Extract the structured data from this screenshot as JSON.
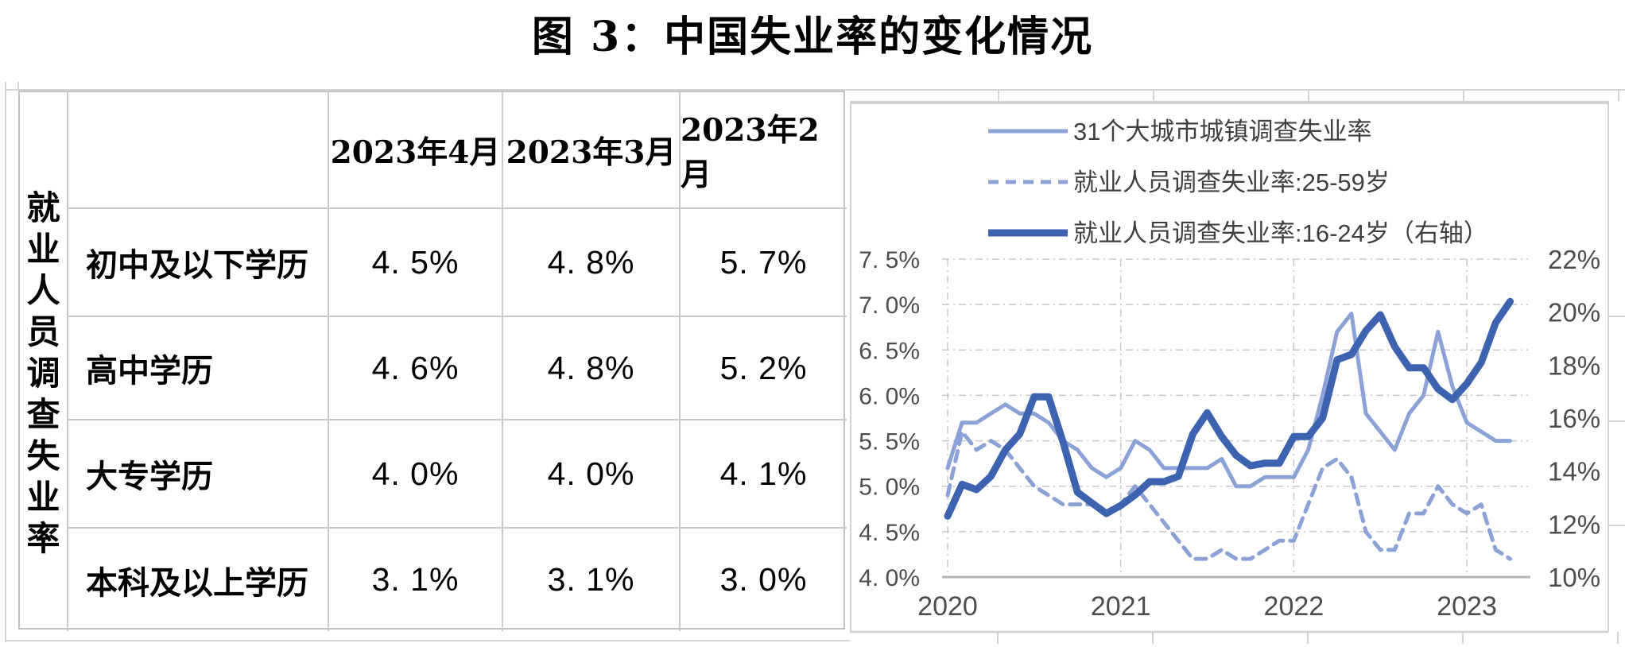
{
  "title": "图 3：中国失业率的变化情况",
  "table": {
    "row_group_label": "就业人员调查失业率",
    "columns": [
      "2023年4月",
      "2023年3月",
      "2023年2月"
    ],
    "rows": [
      {
        "label": "初中及以下学历",
        "values": [
          "4. 5%",
          "4. 8%",
          "5. 7%"
        ]
      },
      {
        "label": "高中学历",
        "values": [
          "4. 6%",
          "4. 8%",
          "5. 2%"
        ]
      },
      {
        "label": "大专学历",
        "values": [
          "4. 0%",
          "4. 0%",
          "4. 1%"
        ]
      },
      {
        "label": "本科及以上学历",
        "values": [
          "3. 1%",
          "3. 1%",
          "3. 0%"
        ]
      }
    ]
  },
  "chart_data": {
    "type": "line",
    "x_unit": "month",
    "x_start": "2020-01",
    "x_end": "2023-04",
    "x_year_labels": [
      "2020",
      "2021",
      "2022",
      "2023"
    ],
    "left_axis": {
      "min": 4.0,
      "max": 7.5,
      "ticks": [
        "7. 5%",
        "7. 0%",
        "6. 5%",
        "6. 0%",
        "5. 5%",
        "5. 0%",
        "4. 5%",
        "4. 0%"
      ]
    },
    "right_axis": {
      "min": 10,
      "max": 22,
      "ticks": [
        "22%",
        "20%",
        "18%",
        "16%",
        "14%",
        "12%",
        "10%"
      ]
    },
    "grid": "dash-dot",
    "legend_position": "top-left-stacked",
    "series": [
      {
        "name": "31个大城市城镇调查失业率",
        "axis": "left",
        "line": "solid",
        "color": "#8CA2D6",
        "width": 5,
        "values": [
          5.2,
          5.7,
          5.7,
          5.8,
          5.9,
          5.8,
          5.8,
          5.7,
          5.5,
          5.4,
          5.2,
          5.1,
          5.2,
          5.5,
          5.4,
          5.2,
          5.2,
          5.2,
          5.2,
          5.3,
          5.0,
          5.0,
          5.1,
          5.1,
          5.1,
          5.4,
          6.0,
          6.7,
          6.9,
          5.8,
          5.6,
          5.4,
          5.8,
          6.0,
          6.7,
          6.1,
          5.7,
          5.6,
          5.5,
          5.5
        ]
      },
      {
        "name": "就业人员调查失业率:25-59岁",
        "axis": "left",
        "line": "dashed",
        "color": "#8CA2D6",
        "width": 5,
        "values": [
          4.9,
          5.6,
          5.4,
          5.5,
          5.4,
          5.2,
          5.0,
          4.9,
          4.8,
          4.8,
          4.8,
          4.7,
          4.8,
          5.0,
          4.8,
          4.6,
          4.4,
          4.2,
          4.2,
          4.3,
          4.2,
          4.2,
          4.3,
          4.4,
          4.4,
          4.8,
          5.2,
          5.3,
          5.1,
          4.5,
          4.3,
          4.3,
          4.7,
          4.7,
          5.0,
          4.8,
          4.7,
          4.8,
          4.3,
          4.2
        ]
      },
      {
        "name": "就业人员调查失业率:16-24岁（右轴）",
        "axis": "right",
        "line": "solid",
        "color": "#3D62AF",
        "width": 9,
        "values": [
          12.3,
          13.5,
          13.3,
          13.8,
          14.8,
          15.4,
          16.8,
          16.8,
          15.1,
          13.2,
          12.8,
          12.4,
          12.7,
          13.1,
          13.6,
          13.6,
          13.8,
          15.4,
          16.2,
          15.3,
          14.6,
          14.2,
          14.3,
          14.3,
          15.3,
          15.3,
          16.0,
          18.2,
          18.4,
          19.3,
          19.9,
          18.7,
          17.9,
          17.9,
          17.1,
          16.7,
          17.3,
          18.1,
          19.6,
          20.4
        ]
      }
    ],
    "colors": {
      "axis_text": "#4d4d4d",
      "legend_text": "#3f3f3f",
      "gridline": "#c8c8c8",
      "axis_line": "#b5b5b5",
      "panel_border": "#d2d2d2",
      "table_border": "#c9c9c9"
    }
  }
}
